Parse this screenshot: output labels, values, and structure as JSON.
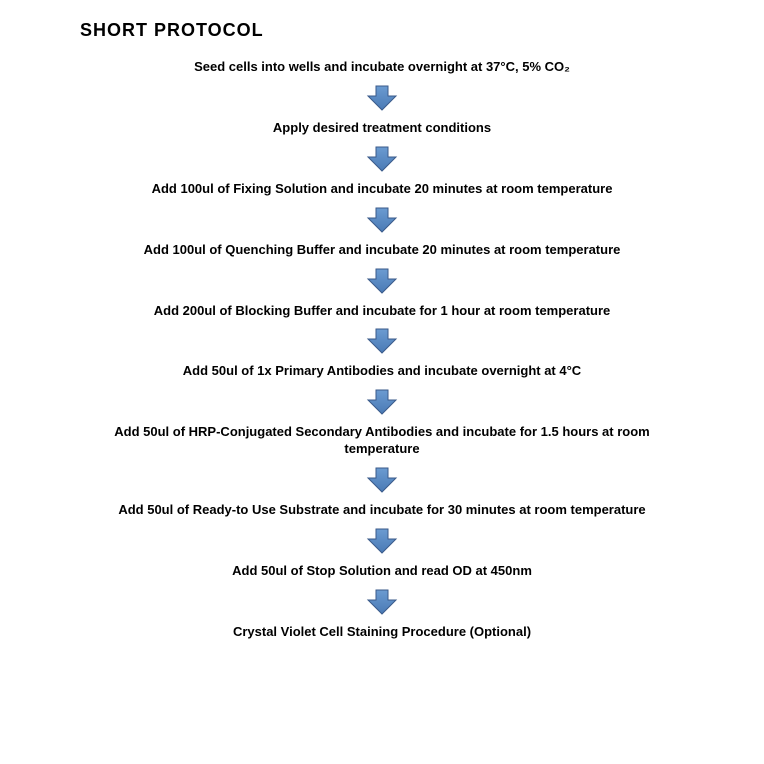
{
  "title": "SHORT PROTOCOL",
  "flowchart": {
    "type": "flowchart",
    "direction": "vertical",
    "background_color": "#ffffff",
    "text_color": "#000000",
    "step_fontsize": 13,
    "step_fontweight": "bold",
    "title_fontsize": 18,
    "title_fontweight": "bold",
    "arrow": {
      "fill_color": "#4a7ab5",
      "stroke_color": "#3a5a8a",
      "width": 32,
      "height": 28
    },
    "steps": [
      "Seed cells into wells and incubate overnight at 37°C, 5% CO₂",
      "Apply desired treatment conditions",
      "Add 100ul of Fixing Solution and incubate 20 minutes at room temperature",
      "Add 100ul of Quenching Buffer and incubate 20 minutes at room temperature",
      "Add 200ul of Blocking Buffer and incubate for 1 hour at room temperature",
      "Add 50ul of 1x Primary Antibodies and incubate overnight at 4°C",
      "Add 50ul of HRP-Conjugated Secondary Antibodies and incubate for 1.5 hours at room temperature",
      "Add 50ul of Ready-to Use Substrate and incubate for 30 minutes at room temperature",
      "Add 50ul of Stop Solution and read OD at 450nm",
      "Crystal Violet Cell Staining Procedure (Optional)"
    ]
  }
}
